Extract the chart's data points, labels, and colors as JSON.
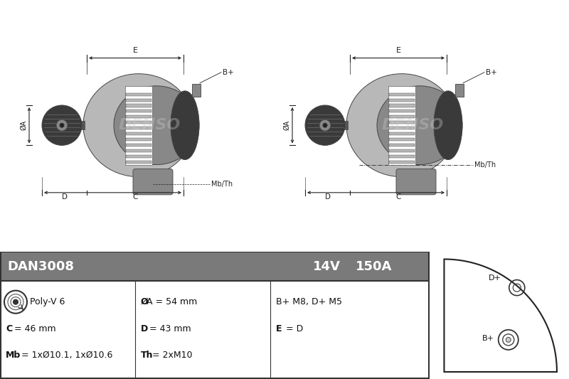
{
  "bg_color": "#ffffff",
  "header_bg": "#7a7a7a",
  "part_number": "DAN3008",
  "voltage": "14V",
  "current": "150A",
  "row1_col1": "Poly-V 6",
  "row1_col2": "ØA = 54 mm",
  "row1_col3": "B+ M8, D+ M5",
  "row2_col1_bold": "C",
  "row2_col1_rest": " = 46 mm",
  "row2_col2_bold": "D",
  "row2_col2_rest": " = 43 mm",
  "row2_col3_bold": "E",
  "row2_col3_rest": " = D",
  "row3_col1_bold": "Mb",
  "row3_col1_rest": " = 1xØ10.1, 1xØ10.6",
  "row3_col2_bold": "Th",
  "row3_col2_rest": " = 2xM10",
  "ann_color": "#222222",
  "edge_color": "#444444",
  "light_gray": "#b8b8b8",
  "mid_gray": "#888888",
  "dark_gray": "#3a3a3a",
  "darker_gray": "#555555"
}
